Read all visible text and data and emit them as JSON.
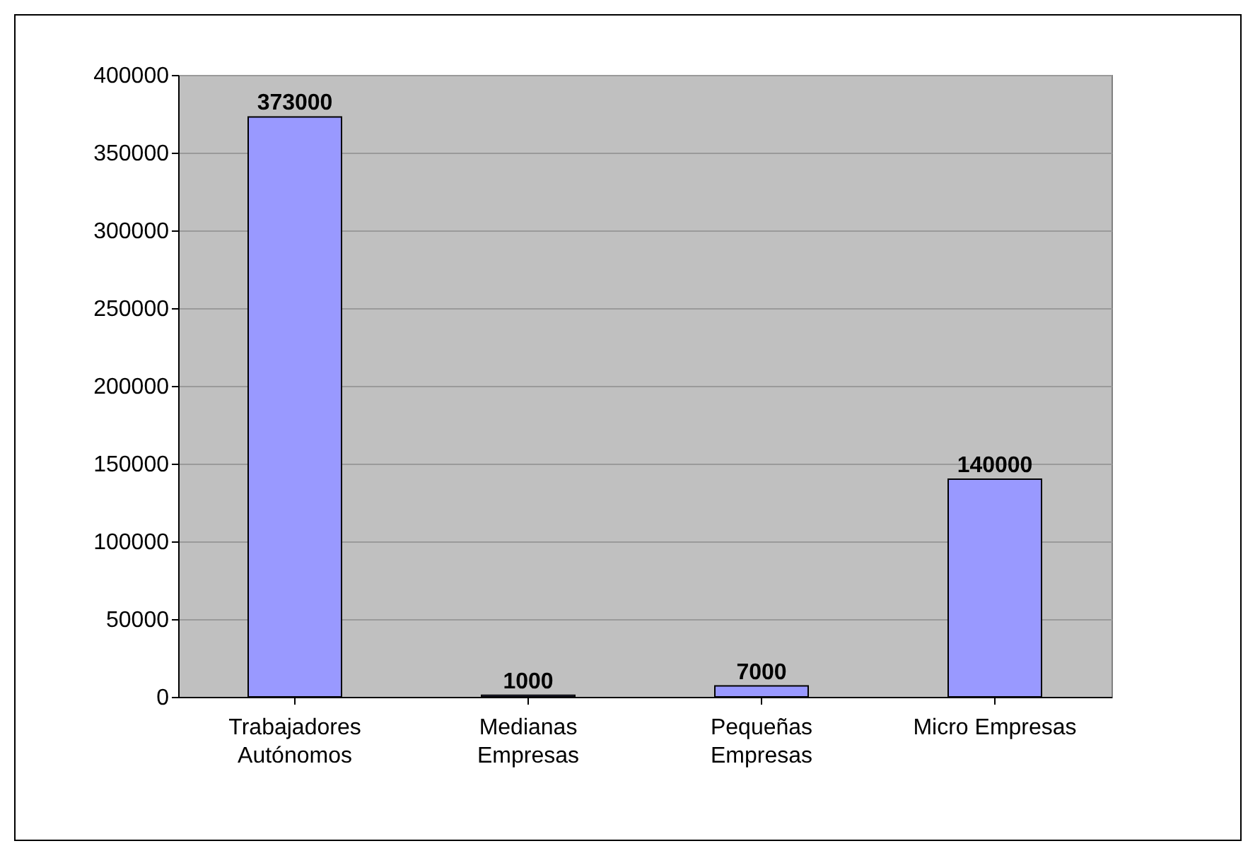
{
  "chart_data": {
    "type": "bar",
    "categories": [
      "Trabajadores Autónomos",
      "Medianas Empresas",
      "Pequeñas Empresas",
      "Micro Empresas"
    ],
    "values": [
      373000,
      1000,
      7000,
      140000
    ],
    "color": "#9999ff",
    "ylim": [
      0,
      400000
    ],
    "yticks": [
      0,
      50000,
      100000,
      150000,
      200000,
      250000,
      300000,
      350000,
      400000
    ],
    "grid": "y",
    "data_labels": true
  }
}
